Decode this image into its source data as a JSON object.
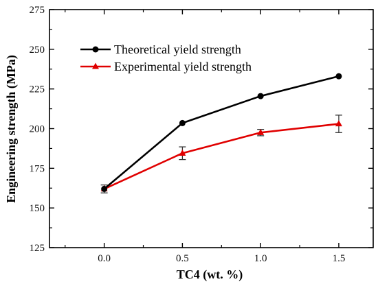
{
  "chart_data": {
    "type": "line",
    "xlabel": "TC4 (wt. %)",
    "ylabel": "Engineering strength (MPa)",
    "xlim": [
      -0.35,
      1.72
    ],
    "ylim": [
      125,
      275
    ],
    "x_ticks": [
      "0.0",
      "0.5",
      "1.0",
      "1.5"
    ],
    "y_ticks": [
      "125",
      "150",
      "175",
      "200",
      "225",
      "250",
      "275"
    ],
    "x": [
      0.0,
      0.5,
      1.0,
      1.5
    ],
    "legend_position": "top-left",
    "series": [
      {
        "name": "Theoretical yield strength",
        "color": "#000000",
        "marker": "circle",
        "values": [
          162,
          203.5,
          220.5,
          233
        ]
      },
      {
        "name": "Experimental yield strength",
        "color": "#e00000",
        "marker": "triangle",
        "values": [
          162,
          184.5,
          197.5,
          203
        ],
        "errors": [
          2.5,
          4,
          2,
          5.5
        ]
      }
    ]
  }
}
